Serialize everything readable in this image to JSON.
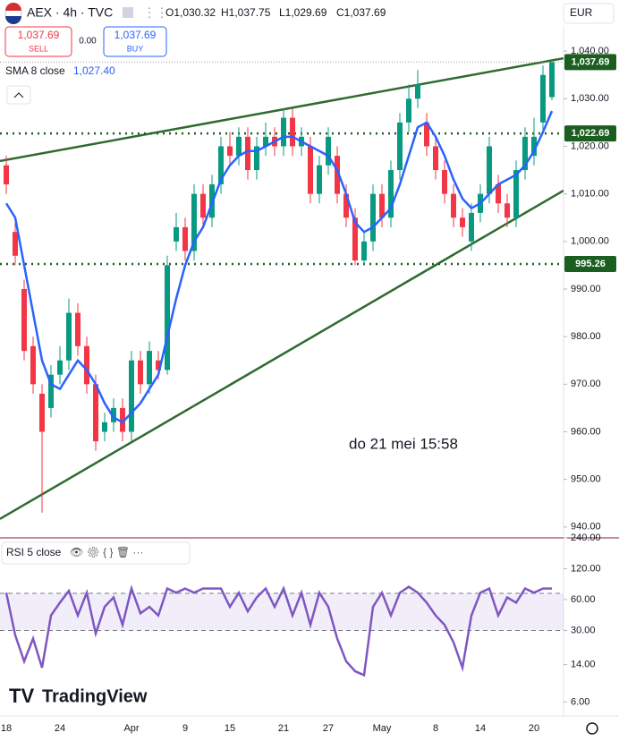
{
  "header": {
    "symbol": "AEX · 4h · TVC",
    "open": "O1,030.32",
    "high": "H1,037.75",
    "low": "L1,029.69",
    "close": "C1,037.69",
    "currency": "EUR",
    "sell_price": "1,037.69",
    "sell": "SELL",
    "spread": "0.00",
    "buy_price": "1,037.69",
    "buy": "BUY",
    "annotation": "do 21 mei 15:58",
    "logo": "TradingView"
  },
  "chart_data": [
    {
      "type": "candlestick",
      "categories": [
        "18",
        null,
        null,
        null,
        null,
        null,
        "24",
        null,
        null,
        null,
        null,
        null,
        null,
        null,
        "Apr",
        null,
        null,
        null,
        null,
        null,
        "9",
        null,
        null,
        null,
        null,
        "15",
        null,
        null,
        null,
        null,
        null,
        "21",
        null,
        null,
        null,
        null,
        "27",
        null,
        null,
        null,
        null,
        null,
        "May",
        null,
        null,
        null,
        null,
        null,
        "8",
        null,
        null,
        null,
        null,
        "14",
        null,
        null,
        null,
        null,
        null,
        "20",
        null,
        null
      ],
      "open": [
        1016,
        1002,
        990,
        978,
        968,
        965,
        972,
        975,
        985,
        978,
        970,
        960,
        962,
        965,
        960,
        975,
        970,
        975,
        973,
        1000,
        1003,
        998,
        1010,
        1005,
        1012,
        1020,
        1018,
        1022,
        1015,
        1020,
        1022,
        1020,
        1026,
        1020,
        1020,
        1010,
        1016,
        1018,
        1010,
        1005,
        996,
        1000,
        1010,
        1005,
        1015,
        1025,
        1030,
        1025,
        1020,
        1015,
        1010,
        1005,
        1000,
        1006,
        1010,
        1012,
        1008,
        1005,
        1015,
        1018,
        1025,
        1030.32
      ],
      "high": [
        1018,
        1004,
        992,
        980,
        970,
        974,
        978,
        988,
        987,
        980,
        972,
        964,
        967,
        967,
        977,
        977,
        979,
        977,
        997,
        1006,
        1005,
        1012,
        1012,
        1014,
        1022,
        1023,
        1024,
        1024,
        1022,
        1025,
        1024,
        1028,
        1028,
        1024,
        1022,
        1018,
        1024,
        1020,
        1012,
        1007,
        1002,
        1012,
        1012,
        1017,
        1027,
        1033,
        1036,
        1027,
        1022,
        1017,
        1012,
        1007,
        1008,
        1012,
        1022,
        1014,
        1010,
        1017,
        1024,
        1026,
        1037,
        1037.75
      ],
      "low": [
        1010,
        995,
        975,
        968,
        943,
        963,
        970,
        973,
        976,
        968,
        956,
        958,
        960,
        958,
        958,
        968,
        968,
        971,
        972,
        998,
        996,
        996,
        1003,
        1003,
        1010,
        1016,
        1016,
        1013,
        1013,
        1018,
        1018,
        1018,
        1018,
        1018,
        1008,
        1008,
        1014,
        1008,
        1003,
        995,
        995,
        998,
        1003,
        1003,
        1013,
        1023,
        1028,
        1018,
        1013,
        1008,
        1003,
        1001,
        998,
        1004,
        1008,
        1006,
        1003,
        1003,
        1013,
        1016,
        1023,
        1029.69
      ],
      "close": [
        1012,
        997,
        977,
        970,
        960,
        972,
        975,
        985,
        978,
        970,
        958,
        962,
        965,
        960,
        975,
        970,
        977,
        973,
        995,
        1003,
        998,
        1010,
        1005,
        1012,
        1020,
        1018,
        1022,
        1015,
        1020,
        1022,
        1020,
        1026,
        1020,
        1022,
        1010,
        1016,
        1022,
        1010,
        1005,
        996,
        1000,
        1010,
        1005,
        1015,
        1025,
        1030,
        1033,
        1020,
        1015,
        1010,
        1005,
        1003,
        1006,
        1010,
        1020,
        1008,
        1005,
        1015,
        1022,
        1022,
        1035,
        1037.69
      ],
      "up_color": "#089981",
      "down_color": "#f23645",
      "series": [
        {
          "name": "SMA 8 close",
          "color": "#2962ff",
          "values": [
            1008,
            1005,
            995,
            985,
            975,
            970,
            969,
            972,
            975,
            973,
            970,
            966,
            963,
            962,
            964,
            966,
            969,
            972,
            980,
            988,
            995,
            1000,
            1003,
            1008,
            1013,
            1016,
            1018,
            1019,
            1019,
            1020,
            1021,
            1022,
            1022,
            1021,
            1020,
            1019,
            1018,
            1015,
            1010,
            1004,
            1002,
            1003,
            1005,
            1007,
            1012,
            1018,
            1024,
            1025,
            1022,
            1018,
            1013,
            1009,
            1007,
            1008,
            1010,
            1012,
            1013,
            1014,
            1016,
            1019,
            1023,
            1027.4
          ],
          "last_label": "1,027.40"
        }
      ],
      "levels": [
        {
          "value": 1022.69,
          "label": "1,022.69",
          "color": "#1b5e20"
        },
        {
          "value": 995.26,
          "label": "995.26",
          "color": "#1b5e20"
        }
      ],
      "last_price": {
        "value": 1037.69,
        "label": "1,037.69",
        "color": "#1b5e20"
      },
      "trendlines": [
        {
          "color": "#2e6b2f",
          "x": [
            -0.7,
            62.3
          ],
          "y": [
            1016.9,
            1038.5
          ]
        },
        {
          "color": "#2e6b2f",
          "x": [
            -0.7,
            62.3
          ],
          "y": [
            941.7,
            1010.7
          ]
        }
      ],
      "ylim": [
        937.9,
        1045.1
      ],
      "yticks": [
        {
          "value": 1040,
          "label": "1,040.00"
        },
        {
          "value": 1030,
          "label": "1,030.00"
        },
        {
          "value": 1020,
          "label": "1,020.00"
        },
        {
          "value": 1010,
          "label": "1,010.00"
        },
        {
          "value": 1000,
          "label": "1,000.00"
        },
        {
          "value": 990,
          "label": "990.00"
        },
        {
          "value": 980,
          "label": "980.00"
        },
        {
          "value": 970,
          "label": "970.00"
        },
        {
          "value": 960,
          "label": "960.00"
        },
        {
          "value": 950,
          "label": "950.00"
        },
        {
          "value": 940,
          "label": "940.00"
        }
      ]
    },
    {
      "type": "line",
      "log_scale": true,
      "series": [
        {
          "name": "RSI 5 close",
          "color": "#7e57c2",
          "values": [
            70,
            27,
            15,
            25,
            13,
            42,
            56,
            73,
            42,
            70,
            28,
            51,
            63,
            34,
            77,
            44,
            51,
            42,
            77,
            70,
            77,
            70,
            77,
            77,
            77,
            51,
            70,
            46,
            63,
            77,
            51,
            77,
            42,
            70,
            34,
            70,
            51,
            25,
            15,
            12,
            11,
            51,
            70,
            42,
            70,
            80,
            70,
            56,
            42,
            34,
            23,
            13,
            42,
            70,
            77,
            42,
            63,
            56,
            77,
            70,
            77,
            77
          ]
        }
      ],
      "band": [
        30,
        69
      ],
      "band_color": "#7e57c2",
      "ylim": [
        4.4,
        240
      ],
      "yticks": [
        {
          "value": 240,
          "label": "240.00"
        },
        {
          "value": 120,
          "label": "120.00"
        },
        {
          "value": 60,
          "label": "60.00"
        },
        {
          "value": 30,
          "label": "30.00"
        },
        {
          "value": 14,
          "label": "14.00"
        },
        {
          "value": 6,
          "label": "6.00"
        }
      ]
    }
  ]
}
